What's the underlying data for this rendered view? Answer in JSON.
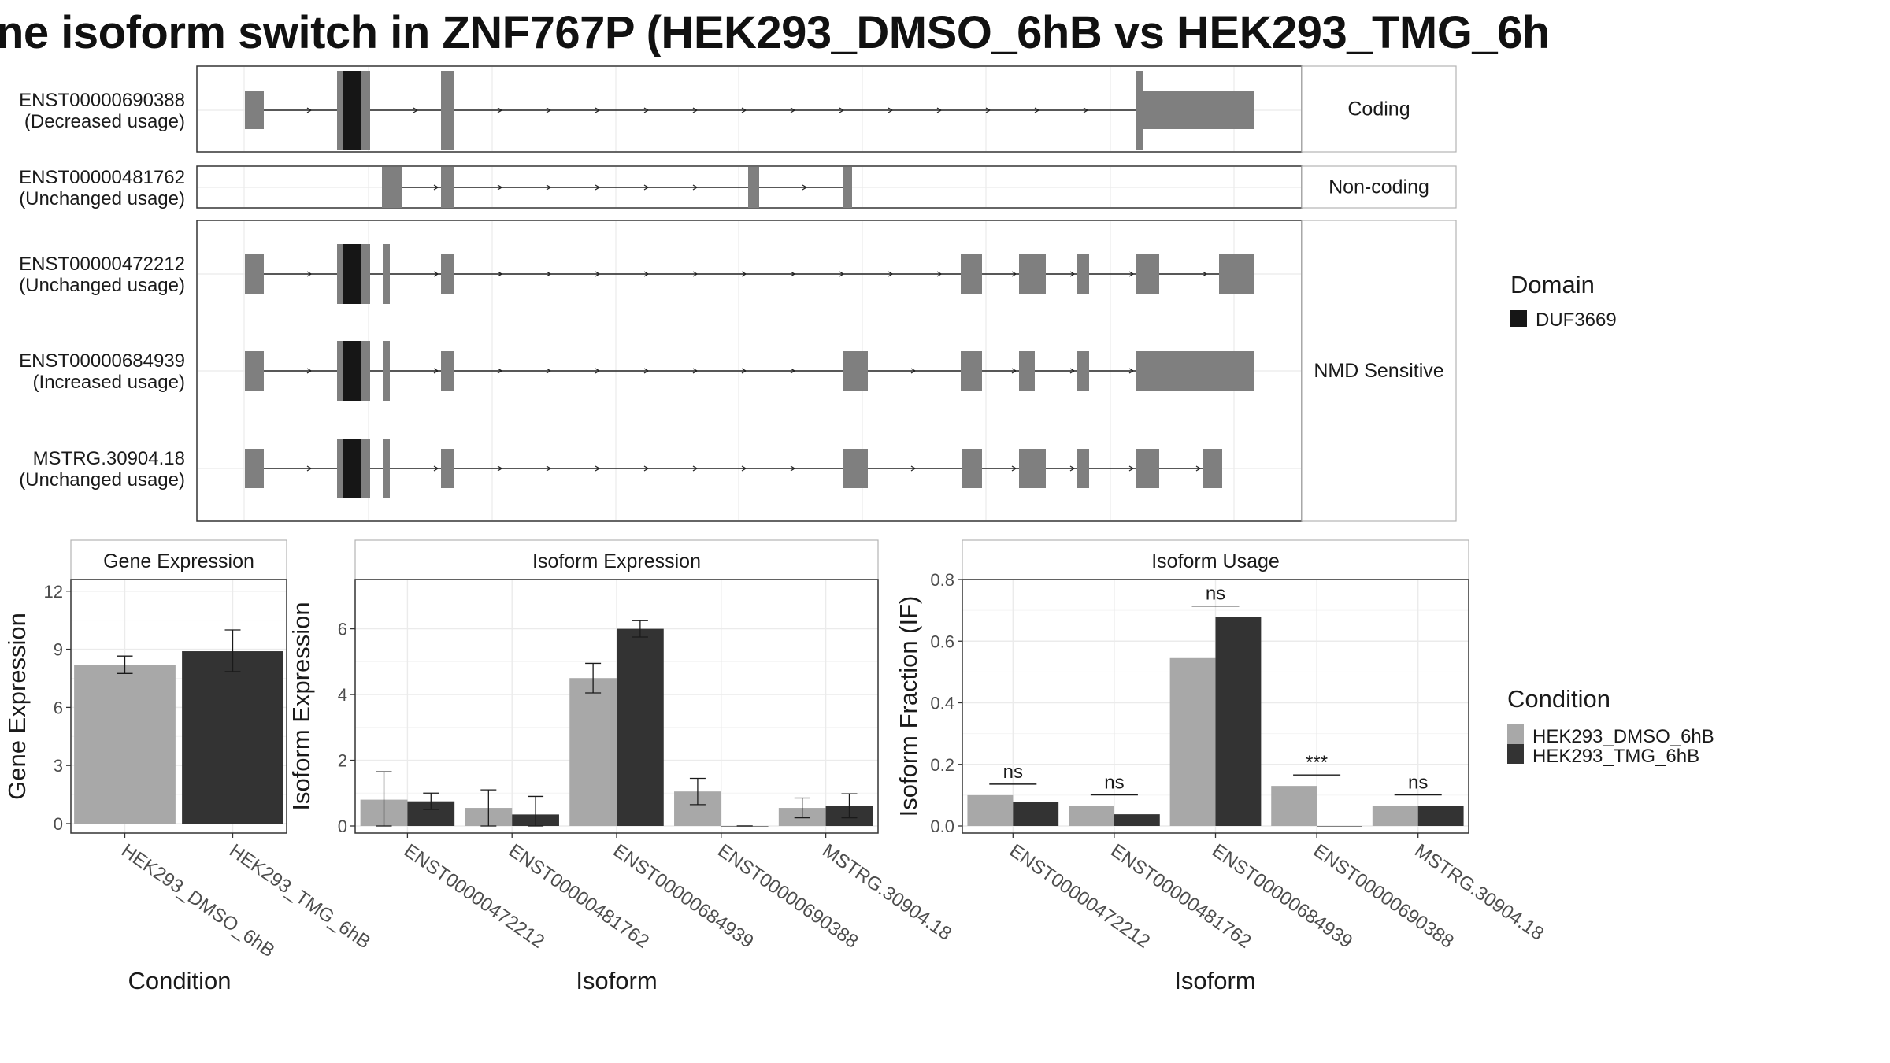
{
  "title": "ne isoform switch in ZNF767P (HEK293_DMSO_6hB vs HEK293_TMG_6h",
  "colors": {
    "exon": "#7f7f7f",
    "domain": "#161616",
    "condition1": "#a8a8a8",
    "condition2": "#333333",
    "grid": "#ebebeb",
    "strip_border": "#b3b3b3",
    "panel_border": "#333333"
  },
  "structure": {
    "facets": [
      {
        "label": "Coding",
        "transcripts": [
          "ENST00000690388"
        ]
      },
      {
        "label": "Non-coding",
        "transcripts": [
          "ENST00000481762"
        ]
      },
      {
        "label": "NMD Sensitive",
        "transcripts": [
          "ENST00000472212",
          "ENST00000684939",
          "MSTRG.30904.18"
        ]
      }
    ],
    "transcripts": [
      {
        "id": "ENST00000690388",
        "usage": "(Decreased usage)"
      },
      {
        "id": "ENST00000481762",
        "usage": "(Unchanged usage)"
      },
      {
        "id": "ENST00000472212",
        "usage": "(Unchanged usage)"
      },
      {
        "id": "ENST00000684939",
        "usage": "(Increased usage)"
      },
      {
        "id": "MSTRG.30904.18",
        "usage": "(Unchanged usage)"
      }
    ]
  },
  "legend_domain": {
    "title": "Domain",
    "items": [
      {
        "label": "DUF3669",
        "color": "#161616"
      }
    ]
  },
  "legend_condition": {
    "title": "Condition",
    "items": [
      {
        "label": "HEK293_DMSO_6hB",
        "color": "#a8a8a8"
      },
      {
        "label": "HEK293_TMG_6hB",
        "color": "#333333"
      }
    ]
  },
  "chart_data": [
    {
      "type": "bar",
      "title": "Gene Expression",
      "xlabel": "Condition",
      "ylabel": "Gene Expression",
      "ylim": [
        0,
        12.6
      ],
      "yticks": [
        0,
        3,
        6,
        9,
        12
      ],
      "categories": [
        "HEK293_DMSO_6hB",
        "HEK293_TMG_6hB"
      ],
      "series": [
        {
          "values": [
            8.2,
            8.9
          ],
          "error_low": [
            7.75,
            7.85
          ],
          "error_high": [
            8.65,
            10.0
          ]
        }
      ],
      "grid": true
    },
    {
      "type": "bar",
      "title": "Isoform Expression",
      "xlabel": "Isoform",
      "ylabel": "Isoform Expression",
      "ylim": [
        0,
        7.5
      ],
      "yticks": [
        0,
        2,
        4,
        6
      ],
      "categories": [
        "ENST00000472212",
        "ENST00000481762",
        "ENST00000684939",
        "ENST00000690388",
        "MSTRG.30904.18"
      ],
      "series": [
        {
          "name": "HEK293_DMSO_6hB",
          "values": [
            0.8,
            0.55,
            4.5,
            1.05,
            0.55
          ],
          "error_low": [
            0.0,
            0.0,
            4.05,
            0.65,
            0.25
          ],
          "error_high": [
            1.65,
            1.1,
            4.95,
            1.45,
            0.85
          ]
        },
        {
          "name": "HEK293_TMG_6hB",
          "values": [
            0.75,
            0.35,
            6.0,
            0.0,
            0.6
          ],
          "error_low": [
            0.5,
            0.0,
            5.75,
            0.0,
            0.25
          ],
          "error_high": [
            1.0,
            0.9,
            6.25,
            0.0,
            0.98
          ]
        }
      ],
      "grid": true
    },
    {
      "type": "bar",
      "title": "Isoform Usage",
      "xlabel": "Isoform",
      "ylabel": "Isoform Fraction (IF)",
      "ylim": [
        0,
        0.8
      ],
      "yticks": [
        0.0,
        0.2,
        0.4,
        0.6,
        0.8
      ],
      "categories": [
        "ENST00000472212",
        "ENST00000481762",
        "ENST00000684939",
        "ENST00000690388",
        "MSTRG.30904.18"
      ],
      "series": [
        {
          "name": "HEK293_DMSO_6hB",
          "values": [
            0.1,
            0.065,
            0.545,
            0.13,
            0.065
          ]
        },
        {
          "name": "HEK293_TMG_6hB",
          "values": [
            0.078,
            0.038,
            0.678,
            0.0,
            0.065
          ]
        }
      ],
      "significance": [
        "ns",
        "ns",
        "ns",
        "***",
        "ns"
      ],
      "grid": true
    }
  ]
}
